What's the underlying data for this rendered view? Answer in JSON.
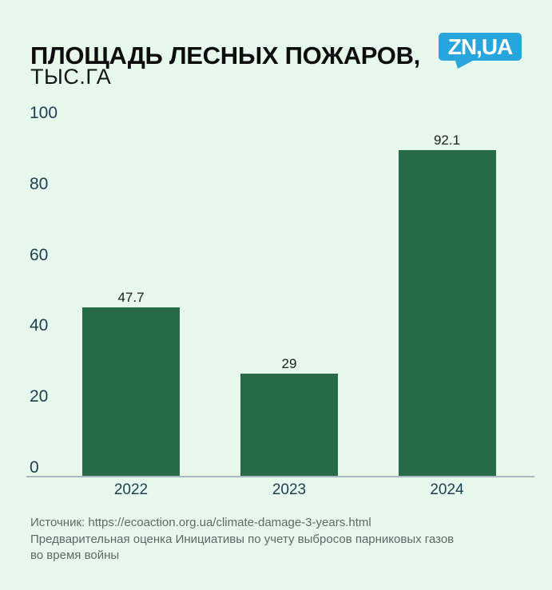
{
  "background": "#e7f9ed",
  "header": {
    "title": "ПЛОЩАДЬ ЛЕСНЫХ ПОЖАРОВ,",
    "subtitle": "ТЫС.ГА",
    "logo": {
      "text": "ZN,UA",
      "bg_color": "#29a5de",
      "text_color": "#ffffff"
    }
  },
  "chart_data": {
    "type": "bar",
    "title": "ПЛОЩАДЬ ЛЕСНЫХ ПОЖАРОВ, ТЫС.ГА",
    "categories": [
      "2022",
      "2023",
      "2024"
    ],
    "values": [
      47.7,
      29,
      92.1
    ],
    "value_labels": [
      "47.7",
      "29",
      "92.1"
    ],
    "xlabel": "",
    "ylabel": "",
    "ylim": [
      0,
      100
    ],
    "yticks": [
      0,
      20,
      40,
      60,
      80,
      100
    ],
    "grid": false,
    "legend": "none",
    "bar_color": "#286b48",
    "tick_color": "#1d3d50",
    "value_label_color": "#1c1c1c"
  },
  "footer": {
    "source_line": "Источник: https://ecoaction.org.ua/climate-damage-3-years.html",
    "note_line1": "Предварительная оценка Инициативы по учету выбросов парниковых газов",
    "note_line2": "во время войны"
  }
}
